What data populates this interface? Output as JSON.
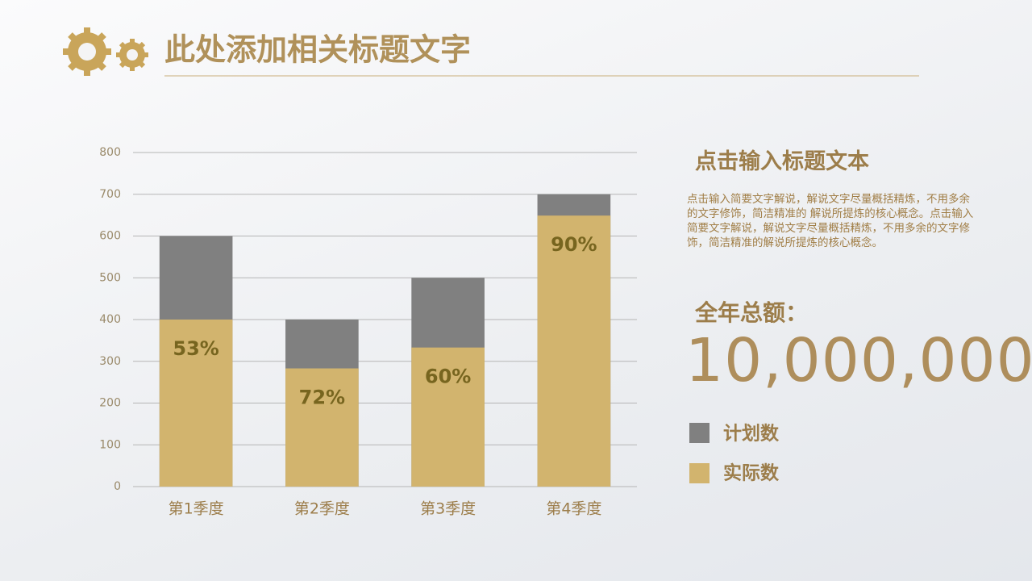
{
  "header": {
    "title": "此处添加相关标题文字"
  },
  "panel": {
    "heading": "点击输入标题文本",
    "body": "点击输入简要文字解说，解说文字尽量概括精炼，不用多余的文字修饰，简洁精准的 解说所提炼的核心概念。点击输入简要文字解说，解说文字尽量概括精炼，不用多余的文字修饰，简洁精准的解说所提炼的核心概念。",
    "total_label": "全年总额：",
    "total_value": "10,000,000"
  },
  "chart_data": {
    "type": "bar",
    "bar_mode": "overlap",
    "categories": [
      "第1季度",
      "第2季度",
      "第3季度",
      "第4季度"
    ],
    "series": [
      {
        "name": "计划数",
        "color": "#808080",
        "values": [
          600,
          400,
          500,
          700
        ]
      },
      {
        "name": "实际数",
        "color": "#d2b46e",
        "values": [
          400,
          283,
          333,
          649
        ]
      }
    ],
    "bar_labels": [
      "53%",
      "72%",
      "60%",
      "90%"
    ],
    "ylim": [
      0,
      800
    ],
    "yticks": [
      0,
      100,
      200,
      300,
      400,
      500,
      600,
      700,
      800
    ],
    "grid": true
  }
}
